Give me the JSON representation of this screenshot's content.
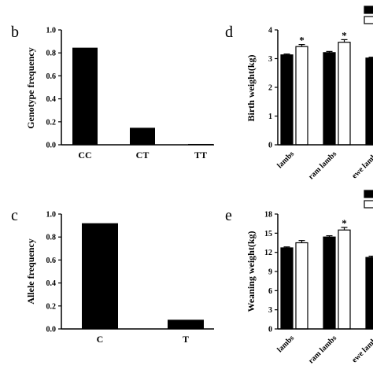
{
  "panels": [
    {
      "letter": "b",
      "chart_data": {
        "type": "bar",
        "ylabel": "Genotype frequency",
        "categories": [
          "CC",
          "CT",
          "TT"
        ],
        "values": [
          0.845,
          0.148,
          0.007
        ],
        "ylim": [
          0,
          1.0
        ],
        "yticks": [
          "0.0",
          "0.2",
          "0.4",
          "0.6",
          "0.8",
          "1.0"
        ],
        "bar_color": "#000000"
      }
    },
    {
      "letter": "c",
      "chart_data": {
        "type": "bar",
        "ylabel": "Allele frequency",
        "categories": [
          "C",
          "T"
        ],
        "values": [
          0.92,
          0.08
        ],
        "ylim": [
          0,
          1.0
        ],
        "yticks": [
          "0.0",
          "0.2",
          "0.4",
          "0.6",
          "0.8",
          "1.0"
        ],
        "bar_color": "#000000"
      }
    },
    {
      "letter": "d",
      "chart_data": {
        "type": "bar",
        "ylabel": "Birth weight(kg)",
        "categories": [
          "lambs",
          "ram lambs",
          "ewe lambs"
        ],
        "series": [
          {
            "fill": "#000000",
            "values": [
              3.13,
              3.21,
              3.02
            ],
            "errors": [
              0.03,
              0.04,
              0.03
            ],
            "significance": [
              "",
              "",
              ""
            ]
          },
          {
            "fill": "#ffffff",
            "values": [
              3.42,
              3.57,
              null
            ],
            "errors": [
              0.07,
              0.09,
              null
            ],
            "significance": [
              "*",
              "*",
              ""
            ]
          }
        ],
        "ylim": [
          0,
          4
        ],
        "yticks": [
          "0",
          "1",
          "2",
          "3",
          "4"
        ]
      }
    },
    {
      "letter": "e",
      "chart_data": {
        "type": "bar",
        "ylabel": "Weaning weight(kg)",
        "categories": [
          "lambs",
          "ram lambs",
          "ewe lambs"
        ],
        "series": [
          {
            "fill": "#000000",
            "values": [
              12.7,
              14.4,
              11.2
            ],
            "errors": [
              0.15,
              0.2,
              0.2
            ],
            "significance": [
              "",
              "",
              ""
            ]
          },
          {
            "fill": "#ffffff",
            "values": [
              13.5,
              15.5,
              null
            ],
            "errors": [
              0.35,
              0.4,
              null
            ],
            "significance": [
              "",
              "*",
              ""
            ]
          }
        ],
        "ylim": [
          0,
          18
        ],
        "yticks": [
          "0",
          "3",
          "6",
          "9",
          "12",
          "15",
          "18"
        ]
      }
    }
  ]
}
